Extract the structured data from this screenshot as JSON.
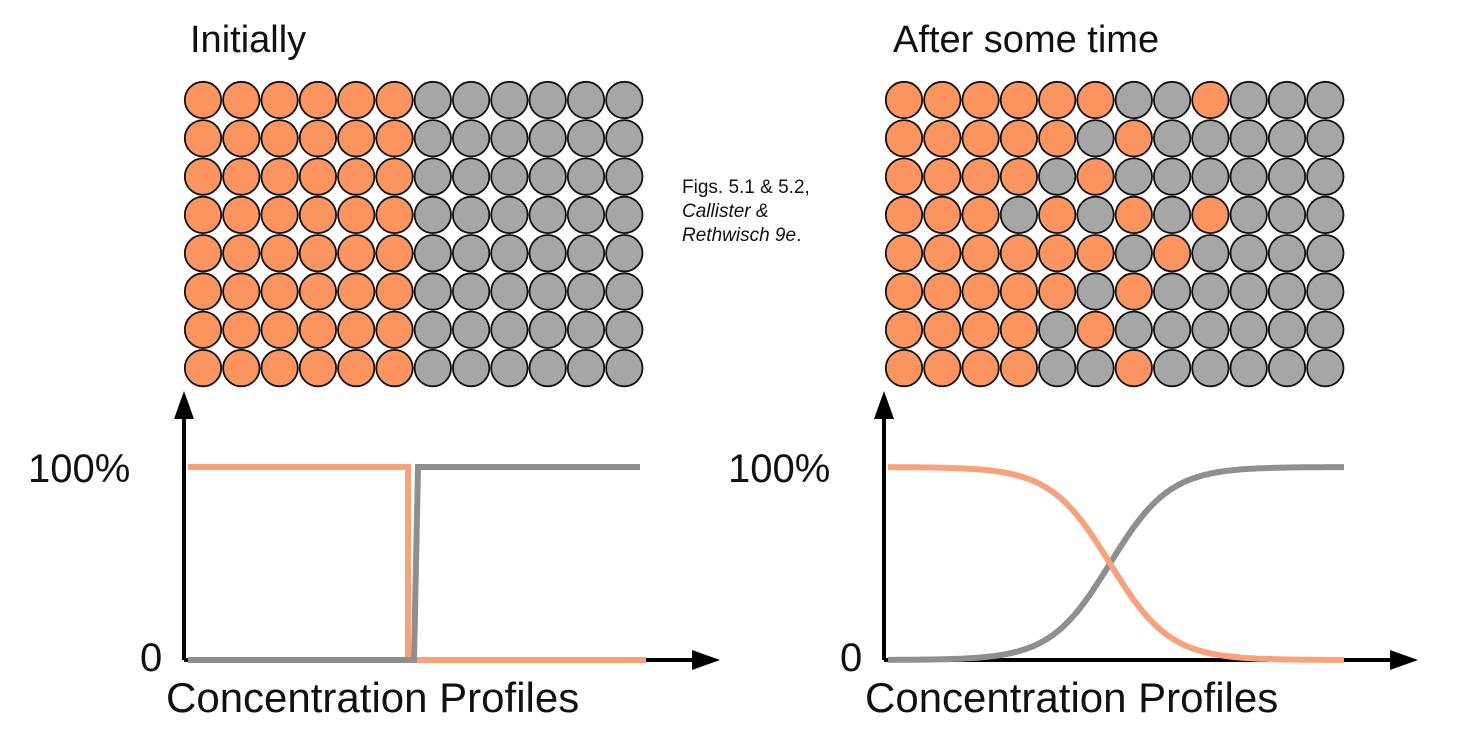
{
  "caption": {
    "line1": "Figs. 5.1 & 5.2,",
    "line2": "Callister &",
    "line3_italic": "Rethwisch 9e",
    "line3_tail": "."
  },
  "colors": {
    "orange": "#FB945F",
    "gray": "#A6A6A6",
    "orange_line": "#F9A27A",
    "gray_line": "#8F8F8F",
    "outline": "#111111"
  },
  "panels": [
    {
      "title": "Initially",
      "ytick_top": "100%",
      "ytick_bottom": "0",
      "xlabel": "Concentration Profiles",
      "grid": [
        "OOOOOOGGGGGG",
        "OOOOOOGGGGGG",
        "OOOOOOGGGGGG",
        "OOOOOOGGGGGG",
        "OOOOOOGGGGGG",
        "OOOOOOGGGGGG",
        "OOOOOOGGGGGG",
        "OOOOOOGGGGGG"
      ],
      "profile": "step"
    },
    {
      "title": "After some time",
      "ytick_top": "100%",
      "ytick_bottom": "0",
      "xlabel": "Concentration Profiles",
      "grid": [
        "OOOOOOGGOGGG",
        "OOOOOGOGGGGG",
        "OOOOGOGGGGGG",
        "OOOGOGOGOGGG",
        "OOOOOOGOGGGG",
        "OOOOOGOGGGGG",
        "OOOOGOGGGGGG",
        "OOOOGGOGGGGG"
      ],
      "profile": "sigmoid"
    }
  ]
}
